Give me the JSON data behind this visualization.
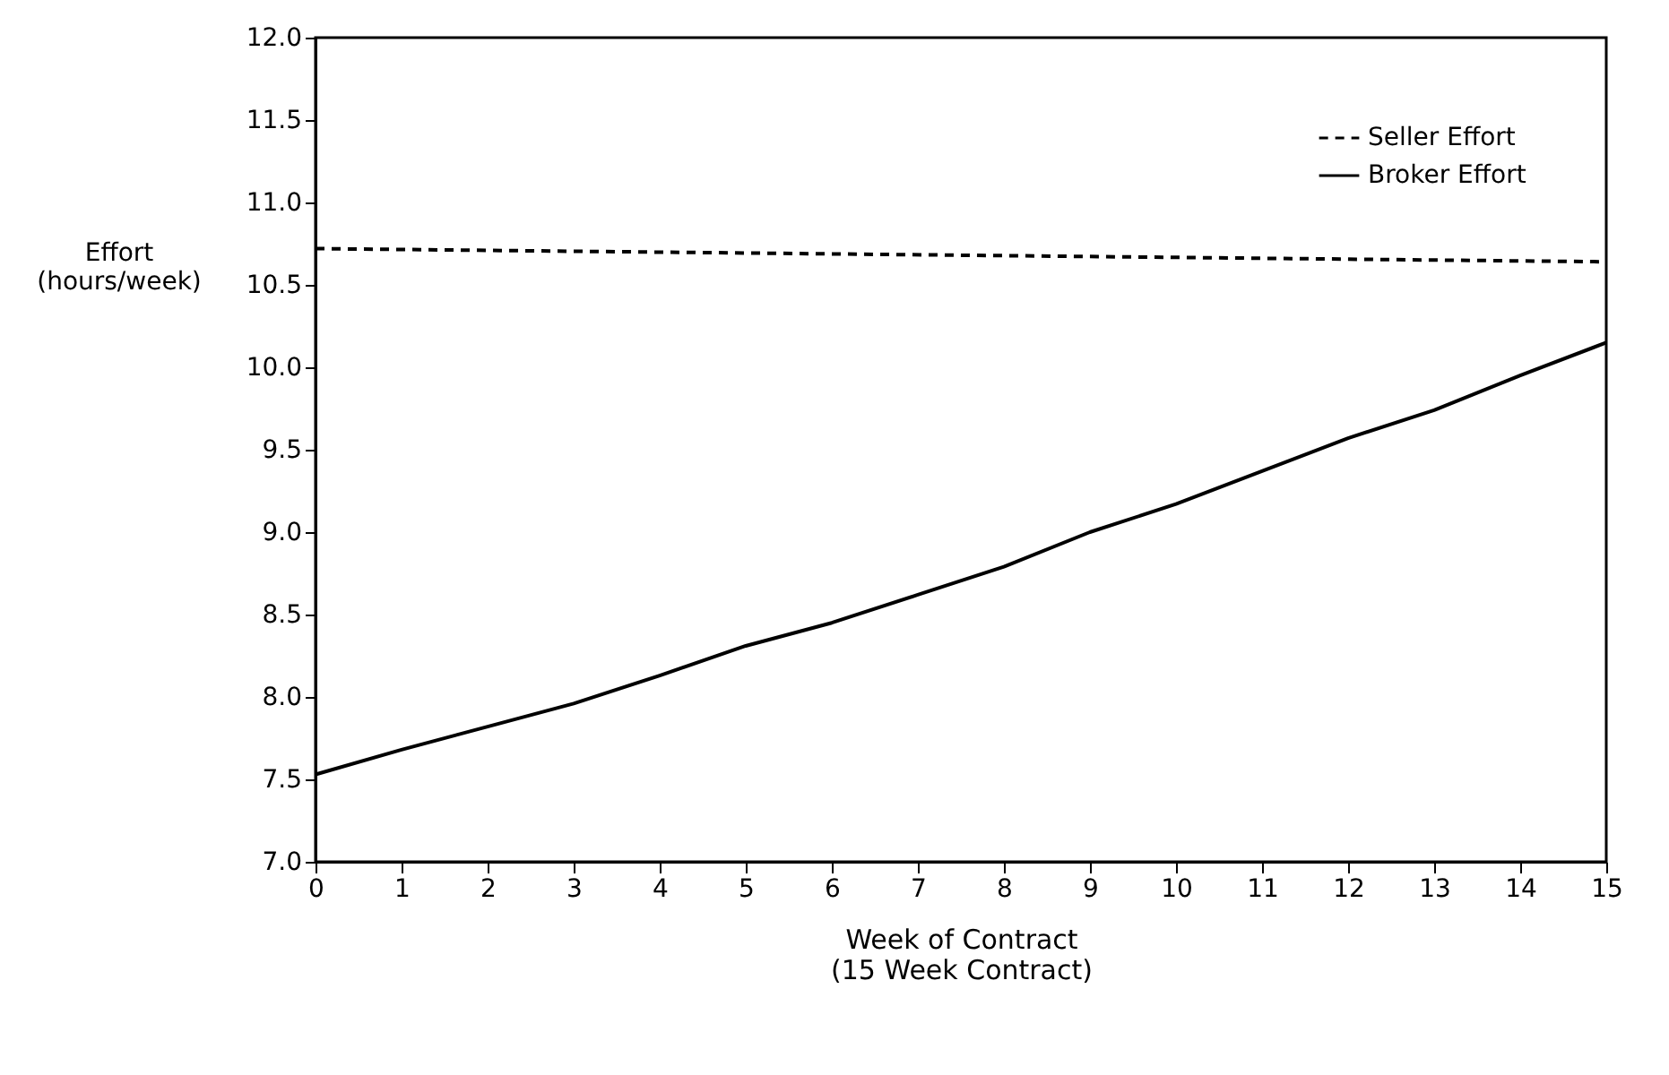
{
  "chart_data": {
    "type": "line",
    "xlabel": "Week of Contract\n(15 Week Contract)",
    "ylabel": "Effort\n(hours/week)",
    "series": [
      {
        "name": "Seller Effort",
        "color": "#000000",
        "line_style": "dashed",
        "x": [
          0,
          15
        ],
        "values": [
          10.72,
          10.64
        ]
      },
      {
        "name": "Broker Effort",
        "color": "#000000",
        "line_style": "solid",
        "x": [
          0,
          1,
          2,
          3,
          4,
          5,
          6,
          7,
          8,
          9,
          10,
          11,
          12,
          13,
          14,
          15
        ],
        "values": [
          7.53,
          7.68,
          7.82,
          7.96,
          8.13,
          8.31,
          8.45,
          8.62,
          8.79,
          9.0,
          9.17,
          9.37,
          9.57,
          9.74,
          9.95,
          10.15
        ]
      }
    ],
    "xlim": [
      0,
      15
    ],
    "xticks": [
      0,
      1,
      2,
      3,
      4,
      5,
      6,
      7,
      8,
      9,
      10,
      11,
      12,
      13,
      14,
      15
    ],
    "ylim": [
      7,
      12
    ],
    "yticks": [
      {
        "value": 7,
        "label": "7.0"
      },
      {
        "value": 7.5,
        "label": "7.5"
      },
      {
        "value": 8,
        "label": "8.0"
      },
      {
        "value": 8.5,
        "label": "8.5"
      },
      {
        "value": 9,
        "label": "9.0"
      },
      {
        "value": 9.5,
        "label": "9.5"
      },
      {
        "value": 10,
        "label": "10.0"
      },
      {
        "value": 10.5,
        "label": "10.5"
      },
      {
        "value": 11,
        "label": "11.0"
      },
      {
        "value": 11.5,
        "label": "11.5"
      },
      {
        "value": 12,
        "label": "12.0"
      }
    ],
    "grid": false,
    "legend": "top right",
    "marker": "none"
  }
}
